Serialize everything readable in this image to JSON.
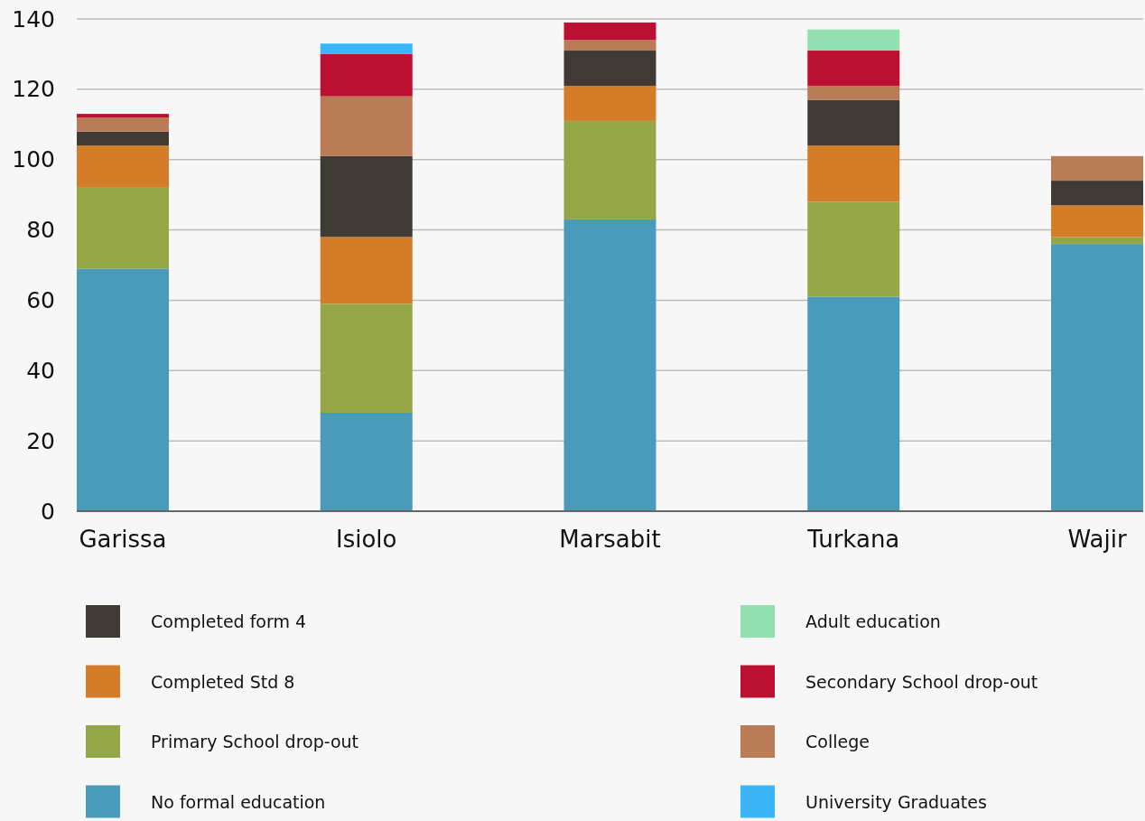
{
  "chart_data": {
    "type": "bar",
    "stacked": true,
    "categories": [
      "Garissa",
      "Isiolo",
      "Marsabit",
      "Turkana",
      "Wajir"
    ],
    "ylim": [
      0,
      140
    ],
    "yticks": [
      0,
      20,
      40,
      60,
      80,
      100,
      120,
      140
    ],
    "grid": "y",
    "legend": "bottom",
    "series": [
      {
        "name": "No formal education",
        "color": "#4a9aba",
        "values": [
          69,
          28,
          83,
          61,
          76
        ]
      },
      {
        "name": "Primary School drop-out",
        "color": "#95a646",
        "values": [
          23,
          31,
          28,
          27,
          2
        ]
      },
      {
        "name": "Completed Std 8",
        "color": "#d47d28",
        "values": [
          12,
          19,
          10,
          16,
          9
        ]
      },
      {
        "name": "Completed form 4",
        "color": "#3f3a34",
        "values": [
          4,
          23,
          10,
          13,
          7
        ]
      },
      {
        "name": "College",
        "color": "#ba7b57",
        "values": [
          4,
          17,
          3,
          4,
          7
        ]
      },
      {
        "name": "Secondary School drop-out",
        "color": "#bb1031",
        "values": [
          1,
          12,
          5,
          10,
          0
        ]
      },
      {
        "name": "Adult education",
        "color": "#93e0b0",
        "values": [
          0,
          0,
          0,
          6,
          0
        ]
      },
      {
        "name": "University Graduates",
        "color": "#3bb6fb",
        "values": [
          0,
          3,
          0,
          0,
          0
        ]
      }
    ]
  }
}
